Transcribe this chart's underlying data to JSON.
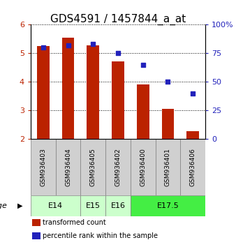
{
  "title": "GDS4591 / 1457844_a_at",
  "samples": [
    "GSM936403",
    "GSM936404",
    "GSM936405",
    "GSM936402",
    "GSM936400",
    "GSM936401",
    "GSM936406"
  ],
  "transformed_counts": [
    5.25,
    5.55,
    5.28,
    4.72,
    3.92,
    3.05,
    2.28
  ],
  "percentile_ranks": [
    80,
    82,
    83,
    75,
    65,
    50,
    40
  ],
  "bar_color": "#bb2200",
  "dot_color": "#2222bb",
  "ylim_left": [
    2,
    6
  ],
  "ylim_right": [
    0,
    100
  ],
  "yticks_left": [
    2,
    3,
    4,
    5,
    6
  ],
  "yticks_right": [
    0,
    25,
    50,
    75,
    100
  ],
  "yticklabels_right": [
    "0",
    "25",
    "50",
    "75",
    "100%"
  ],
  "groups": [
    {
      "label": "E14",
      "start": 0,
      "end": 1,
      "color": "#ccffcc"
    },
    {
      "label": "E15",
      "start": 2,
      "end": 2,
      "color": "#ccffcc"
    },
    {
      "label": "E16",
      "start": 3,
      "end": 3,
      "color": "#ccffcc"
    },
    {
      "label": "E17.5",
      "start": 4,
      "end": 6,
      "color": "#44ee44"
    }
  ],
  "age_label": "age",
  "legend_bar_label": "transformed count",
  "legend_dot_label": "percentile rank within the sample",
  "bar_bottom": 2.0,
  "title_fontsize": 11,
  "tick_fontsize": 8,
  "sample_fontsize": 6.5,
  "group_fontsize": 8
}
